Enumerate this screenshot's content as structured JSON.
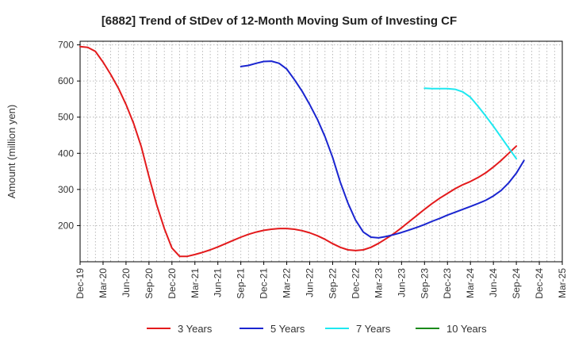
{
  "chart_data": {
    "type": "line",
    "title": "[6882]  Trend of StDev of 12-Month Moving Sum of Investing CF",
    "ylabel": "Amount (million yen)",
    "xlabel": "",
    "ylim": [
      100,
      710
    ],
    "yticks": [
      200,
      300,
      400,
      500,
      600,
      700
    ],
    "x_categories": [
      "Dec-19",
      "Mar-20",
      "Jun-20",
      "Sep-20",
      "Dec-20",
      "Mar-21",
      "Jun-21",
      "Sep-21",
      "Dec-21",
      "Mar-22",
      "Jun-22",
      "Sep-22",
      "Dec-22",
      "Mar-23",
      "Jun-23",
      "Sep-23",
      "Dec-23",
      "Mar-24",
      "Jun-24",
      "Sep-24",
      "Dec-24",
      "Mar-25"
    ],
    "grid": true,
    "legend_position": "bottom",
    "series": [
      {
        "name": "3 Years",
        "color": "#e31a1c",
        "start_index": 0,
        "values": [
          695,
          693,
          682,
          652,
          618,
          580,
          535,
          482,
          418,
          335,
          258,
          192,
          138,
          115,
          115,
          120,
          126,
          133,
          141,
          150,
          159,
          168,
          176,
          182,
          187,
          190,
          192,
          192,
          190,
          186,
          180,
          172,
          162,
          150,
          140,
          133,
          131,
          133,
          140,
          151,
          164,
          178,
          194,
          211,
          228,
          245,
          261,
          276,
          289,
          302,
          313,
          322,
          333,
          346,
          362,
          380,
          400,
          420
        ]
      },
      {
        "name": "5 Years",
        "color": "#1a25d0",
        "start_index": 21,
        "values": [
          640,
          643,
          649,
          654,
          655,
          649,
          633,
          604,
          572,
          535,
          494,
          446,
          388,
          320,
          262,
          215,
          182,
          168,
          166,
          170,
          175,
          181,
          188,
          195,
          203,
          212,
          220,
          229,
          237,
          245,
          253,
          261,
          270,
          282,
          297,
          318,
          345,
          380
        ]
      },
      {
        "name": "7 Years",
        "color": "#1ee8f0",
        "start_index": 45,
        "values": [
          580,
          579,
          579,
          579,
          577,
          570,
          555,
          530,
          503,
          475,
          445,
          415,
          385
        ]
      },
      {
        "name": "10 Years",
        "color": "#1a8a1a",
        "start_index": 0,
        "values": []
      }
    ]
  }
}
